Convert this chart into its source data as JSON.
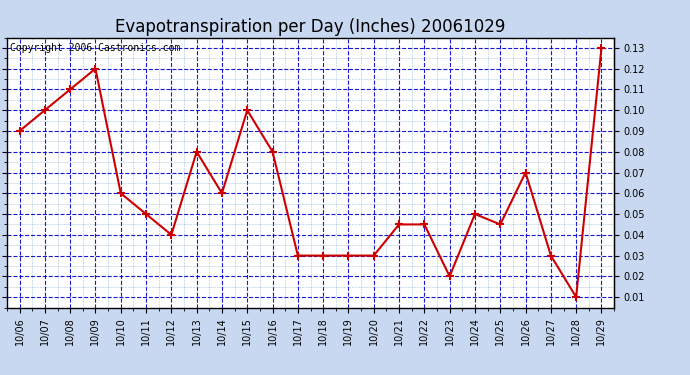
{
  "title": "Evapotranspiration per Day (Inches) 20061029",
  "copyright": "Copyright 2006 Castronics.com",
  "x_labels": [
    "10/06",
    "10/07",
    "10/08",
    "10/09",
    "10/10",
    "10/11",
    "10/12",
    "10/13",
    "10/14",
    "10/15",
    "10/16",
    "10/17",
    "10/18",
    "10/19",
    "10/20",
    "10/21",
    "10/22",
    "10/23",
    "10/24",
    "10/25",
    "10/26",
    "10/27",
    "10/28",
    "10/29"
  ],
  "y_values": [
    0.09,
    0.1,
    0.11,
    0.12,
    0.06,
    0.05,
    0.04,
    0.08,
    0.06,
    0.1,
    0.08,
    0.03,
    0.03,
    0.03,
    0.03,
    0.045,
    0.045,
    0.02,
    0.05,
    0.045,
    0.07,
    0.03,
    0.01,
    0.13
  ],
  "ylim": [
    0.005,
    0.135
  ],
  "yticks": [
    0.01,
    0.02,
    0.03,
    0.04,
    0.05,
    0.06,
    0.07,
    0.08,
    0.09,
    0.1,
    0.11,
    0.12,
    0.13
  ],
  "line_color": "#cc0000",
  "marker": "+",
  "marker_size": 6,
  "marker_edge_width": 1.5,
  "line_width": 1.5,
  "bg_color": "#ffffff",
  "plot_bg": "#ffffff",
  "outer_bg": "#c8d8f0",
  "grid_color_major": "#0000cc",
  "grid_color_minor": "#6699cc",
  "title_fontsize": 12,
  "copyright_fontsize": 7,
  "tick_fontsize": 7
}
